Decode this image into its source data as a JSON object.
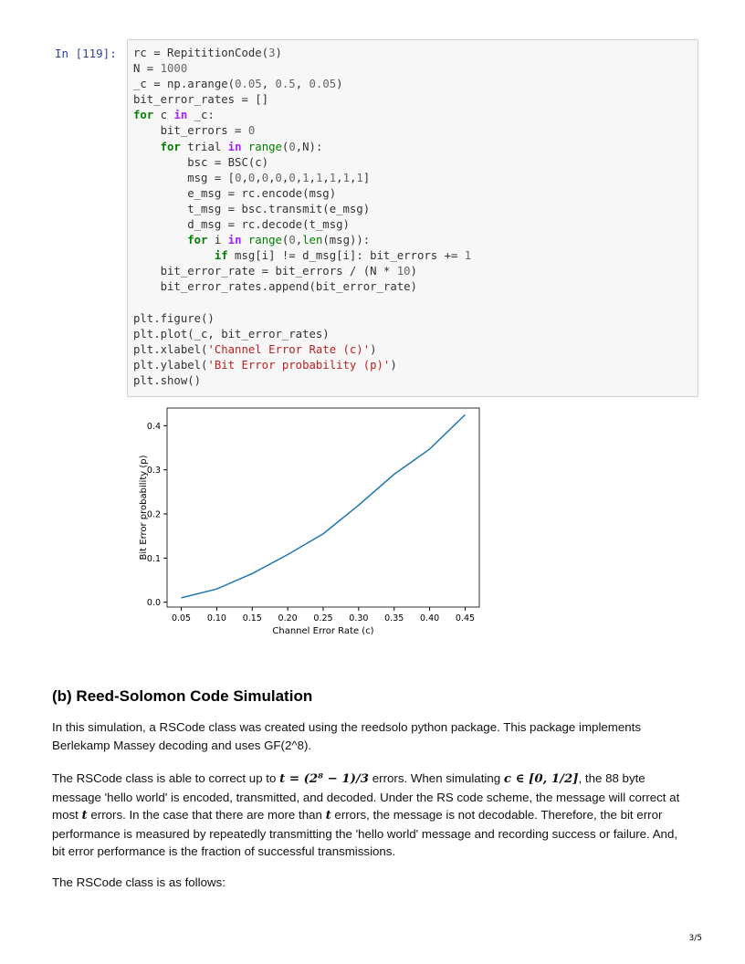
{
  "cell": {
    "prompt": "In [119]:"
  },
  "chart_data": {
    "type": "line",
    "x": [
      0.05,
      0.1,
      0.15,
      0.2,
      0.25,
      0.3,
      0.35,
      0.4,
      0.45
    ],
    "values": [
      0.01,
      0.03,
      0.065,
      0.108,
      0.155,
      0.22,
      0.29,
      0.347,
      0.425
    ],
    "xlabel": "Channel Error Rate (c)",
    "ylabel": "Bit Error probability (p)",
    "xticks": [
      "0.05",
      "0.10",
      "0.15",
      "0.20",
      "0.25",
      "0.30",
      "0.35",
      "0.40",
      "0.45"
    ],
    "yticks": [
      "0.0",
      "0.1",
      "0.2",
      "0.3",
      "0.4"
    ],
    "xlim": [
      0.03,
      0.47
    ],
    "ylim": [
      -0.011,
      0.44
    ],
    "line_color": "#1f77b4",
    "grid": false
  },
  "section": {
    "title": "(b) Reed-Solomon Code Simulation",
    "p1": "In this simulation, a RSCode class was created using the reedsolo python package. This package implements Berlekamp Massey decoding and uses GF(2^8).",
    "p2a": "The RSCode class is able to correct up to ",
    "m1": "t = (2⁸ − 1)/3",
    "p2b": " errors. When simulating ",
    "m2": "c ∈ [0, 1/2]",
    "p2c": ", the 88 byte message 'hello world' is encoded, transmitted, and decoded. Under the RS code scheme, the message will correct at most ",
    "m3": "t",
    "p2d": " errors. In the case that there are more than ",
    "m4": "t",
    "p2e": " errors, the message is not decodable. Therefore, the bit error performance is measured by repeatedly transmitting the 'hello world' message and recording success or failure. And, bit error performance is the fraction of successful transmissions.",
    "p3": "The RSCode class is as follows:"
  },
  "page": "3/5"
}
